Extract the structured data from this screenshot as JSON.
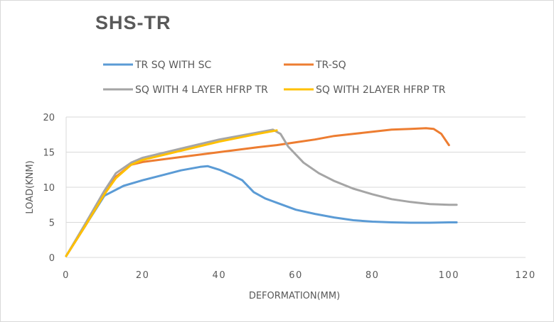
{
  "chart_data": {
    "type": "line",
    "title": "SHS-TR",
    "xlabel": "DEFORMATION(MM)",
    "ylabel": "LOAD(KNM)",
    "xlim": [
      0,
      120
    ],
    "ylim": [
      0,
      20
    ],
    "xticks": [
      0,
      20,
      40,
      60,
      80,
      100,
      120
    ],
    "yticks": [
      0,
      5,
      10,
      15,
      20
    ],
    "grid": "horizontal",
    "legend_position": "top",
    "series": [
      {
        "name": "TR SQ WITH SC",
        "color": "#5B9BD5",
        "points": [
          [
            0,
            0.2
          ],
          [
            5,
            4.5
          ],
          [
            10,
            8.8
          ],
          [
            15,
            10.2
          ],
          [
            20,
            11.0
          ],
          [
            25,
            11.7
          ],
          [
            30,
            12.4
          ],
          [
            35,
            12.9
          ],
          [
            37,
            13.0
          ],
          [
            40,
            12.5
          ],
          [
            43,
            11.8
          ],
          [
            46,
            11.0
          ],
          [
            49,
            9.3
          ],
          [
            52,
            8.4
          ],
          [
            55,
            7.8
          ],
          [
            60,
            6.8
          ],
          [
            65,
            6.2
          ],
          [
            70,
            5.7
          ],
          [
            75,
            5.3
          ],
          [
            80,
            5.1
          ],
          [
            85,
            5.0
          ],
          [
            90,
            4.95
          ],
          [
            95,
            4.95
          ],
          [
            100,
            5.0
          ],
          [
            102,
            5.0
          ]
        ]
      },
      {
        "name": "TR-SQ",
        "color": "#ED7D31",
        "points": [
          [
            0,
            0.2
          ],
          [
            5,
            4.5
          ],
          [
            10,
            9.0
          ],
          [
            13,
            11.5
          ],
          [
            17,
            13.2
          ],
          [
            20,
            13.6
          ],
          [
            30,
            14.3
          ],
          [
            40,
            15.0
          ],
          [
            50,
            15.7
          ],
          [
            55,
            16.0
          ],
          [
            60,
            16.4
          ],
          [
            65,
            16.8
          ],
          [
            70,
            17.3
          ],
          [
            75,
            17.6
          ],
          [
            80,
            17.9
          ],
          [
            85,
            18.2
          ],
          [
            90,
            18.3
          ],
          [
            94,
            18.4
          ],
          [
            96,
            18.3
          ],
          [
            98,
            17.6
          ],
          [
            100,
            16.0
          ]
        ]
      },
      {
        "name": "SQ WITH 4 LAYER HFRP TR",
        "color": "#A5A5A5",
        "points": [
          [
            0,
            0.2
          ],
          [
            5,
            4.8
          ],
          [
            10,
            9.5
          ],
          [
            13,
            12.0
          ],
          [
            17,
            13.5
          ],
          [
            20,
            14.2
          ],
          [
            30,
            15.5
          ],
          [
            40,
            16.8
          ],
          [
            50,
            17.8
          ],
          [
            54,
            18.2
          ],
          [
            56,
            17.6
          ],
          [
            58,
            15.8
          ],
          [
            62,
            13.5
          ],
          [
            66,
            12.0
          ],
          [
            70,
            10.9
          ],
          [
            75,
            9.8
          ],
          [
            80,
            9.0
          ],
          [
            85,
            8.3
          ],
          [
            90,
            7.9
          ],
          [
            95,
            7.6
          ],
          [
            100,
            7.5
          ],
          [
            102,
            7.5
          ]
        ]
      },
      {
        "name": "SQ WITH 2LAYER HFRP TR",
        "color": "#FFC000",
        "points": [
          [
            0,
            0.2
          ],
          [
            5,
            4.5
          ],
          [
            10,
            9.0
          ],
          [
            13,
            11.3
          ],
          [
            17,
            13.2
          ],
          [
            20,
            13.9
          ],
          [
            30,
            15.2
          ],
          [
            40,
            16.5
          ],
          [
            50,
            17.6
          ],
          [
            55,
            18.1
          ]
        ]
      }
    ]
  }
}
